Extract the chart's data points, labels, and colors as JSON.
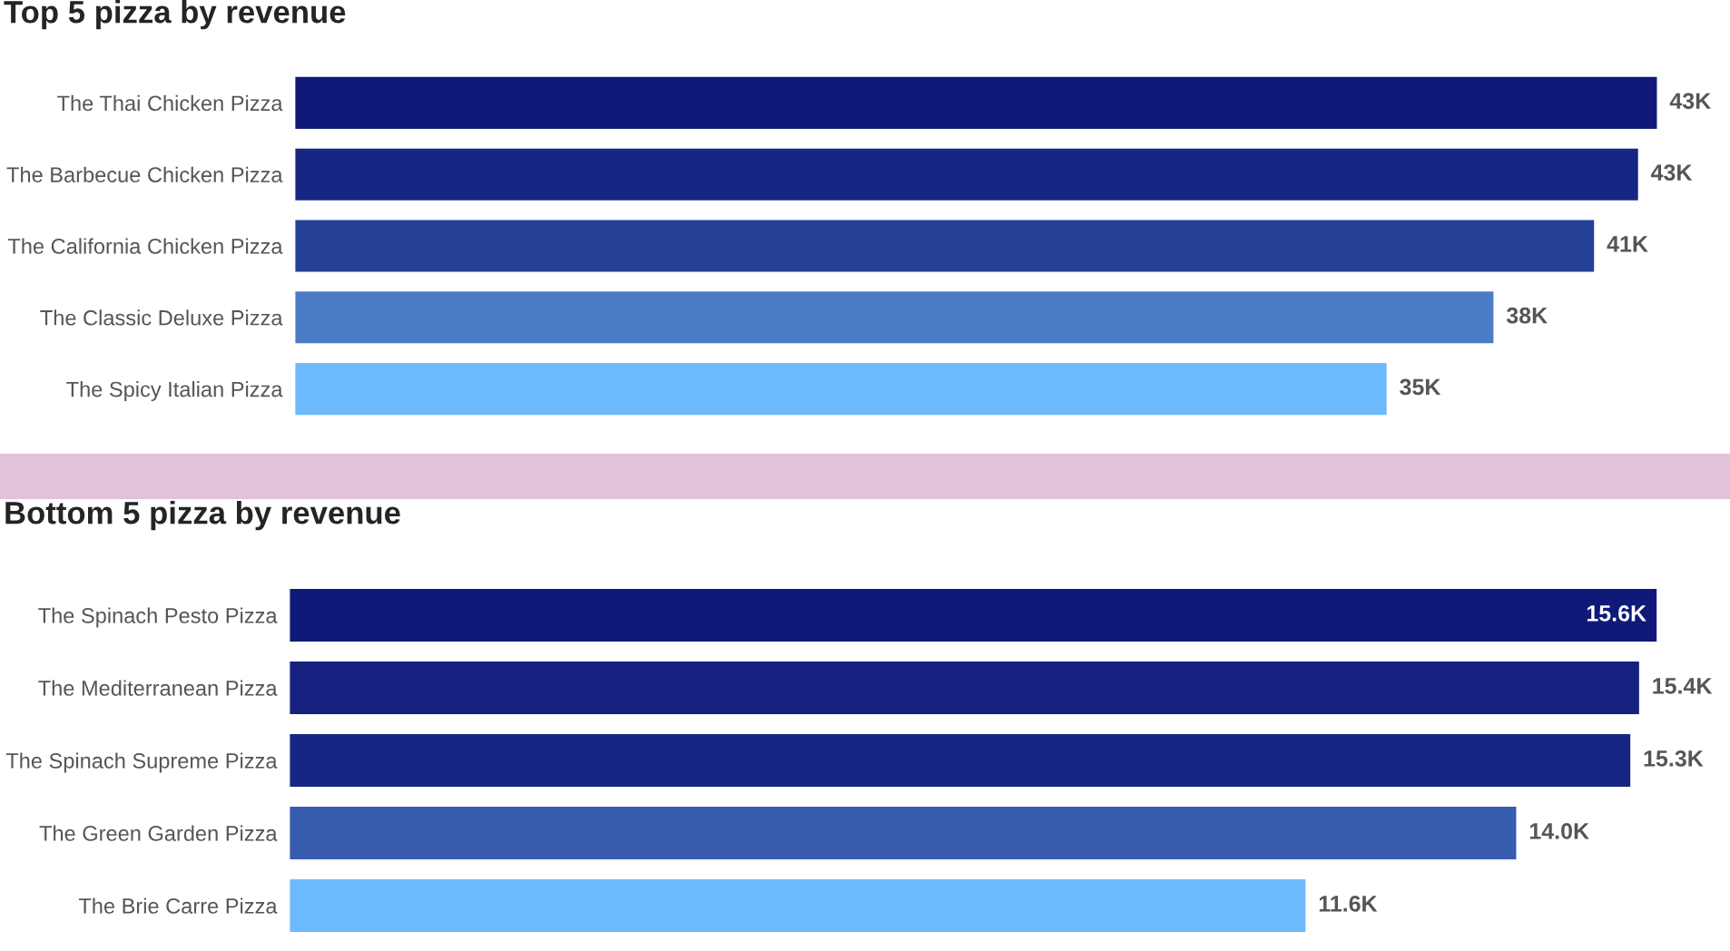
{
  "chart_data": [
    {
      "type": "bar",
      "orientation": "horizontal",
      "title": "Top 5 pizza by revenue",
      "categories": [
        "The Thai Chicken Pizza",
        "The Barbecue Chicken Pizza",
        "The California Chicken Pizza",
        "The Classic Deluxe Pizza",
        "The Spicy Italian Pizza"
      ],
      "values": [
        43.4,
        42.8,
        41.4,
        38.2,
        34.8
      ],
      "value_labels": [
        "43K",
        "43K",
        "41K",
        "38K",
        "35K"
      ],
      "colors": [
        "#0f1a78",
        "#172683",
        "#254196",
        "#4b7cc7",
        "#6cb9fe"
      ],
      "tick_labels": "y"
    },
    {
      "type": "bar",
      "orientation": "horizontal",
      "title": "Bottom 5 pizza by revenue",
      "categories": [
        "The Spinach Pesto Pizza",
        "The Mediterranean Pizza",
        "The Spinach Supreme Pizza",
        "The Green Garden Pizza",
        "The Brie Carre Pizza"
      ],
      "values": [
        15.6,
        15.4,
        15.3,
        14.0,
        11.6
      ],
      "value_labels": [
        "15.6K",
        "15.4K",
        "15.3K",
        "14.0K",
        "11.6K"
      ],
      "colors": [
        "#0f1a78",
        "#152280",
        "#172683",
        "#375cae",
        "#6cb9fe"
      ],
      "tick_labels": "y"
    }
  ]
}
